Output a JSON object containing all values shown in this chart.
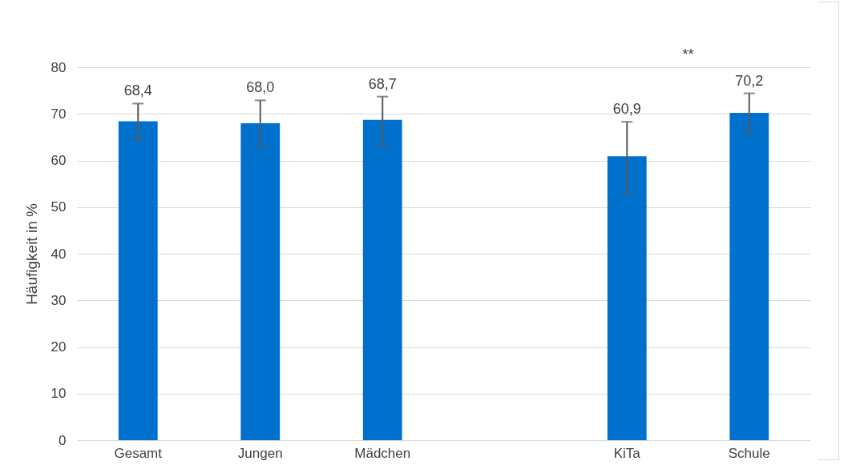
{
  "chart_data": {
    "type": "bar",
    "ylabel": "Häufigkeit in %",
    "categories": [
      "Gesamt",
      "Jungen",
      "Mädchen",
      null,
      "KiTa",
      "Schule"
    ],
    "values": [
      68.4,
      68.0,
      68.7,
      null,
      60.9,
      70.2
    ],
    "value_labels": [
      "68,4",
      "68,0",
      "68,7",
      null,
      "60,9",
      "70,2"
    ],
    "errors": [
      [
        64.4,
        72.2
      ],
      [
        62.7,
        72.9
      ],
      [
        63.1,
        73.7
      ],
      null,
      [
        52.9,
        68.3
      ],
      [
        65.8,
        74.4
      ]
    ],
    "color": "#0070cd",
    "ylim": [
      0,
      80
    ],
    "yticks": [
      0,
      10,
      20,
      30,
      40,
      50,
      60,
      70,
      80
    ],
    "grid": "y",
    "annotations": [
      "**"
    ]
  }
}
